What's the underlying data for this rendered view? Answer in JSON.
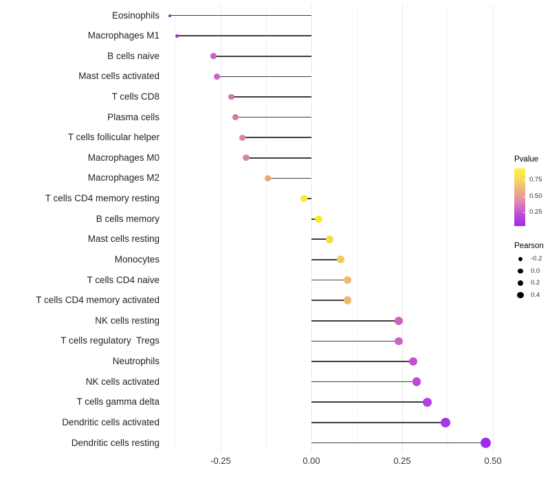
{
  "chart_data": {
    "type": "lollipop",
    "orientation": "horizontal",
    "title": "",
    "xlabel": "",
    "ylabel": "",
    "x_ticks": [
      "-0.25",
      "0.00",
      "0.25",
      "0.50"
    ],
    "x_tick_values": [
      -0.25,
      0.0,
      0.25,
      0.5
    ],
    "xlim": [
      -0.435,
      0.525
    ],
    "grid": true,
    "baseline": 0.0,
    "points": [
      {
        "label": "Eosinophils",
        "pearson": -0.39,
        "pvalue": 0.07,
        "color": "#8b28c8"
      },
      {
        "label": "Macrophages M1",
        "pearson": -0.37,
        "pvalue": 0.1,
        "color": "#9b32cc"
      },
      {
        "label": "B cells naive",
        "pearson": -0.27,
        "pvalue": 0.24,
        "color": "#c661c9"
      },
      {
        "label": "Mast cells activated",
        "pearson": -0.26,
        "pvalue": 0.26,
        "color": "#c868c2"
      },
      {
        "label": "T cells CD8",
        "pearson": -0.22,
        "pvalue": 0.34,
        "color": "#cf76ab"
      },
      {
        "label": "Plasma cells",
        "pearson": -0.21,
        "pvalue": 0.35,
        "color": "#d078a9"
      },
      {
        "label": "T cells follicular helper",
        "pearson": -0.19,
        "pvalue": 0.43,
        "color": "#d98497"
      },
      {
        "label": "Macrophages M0",
        "pearson": -0.18,
        "pvalue": 0.43,
        "color": "#d98595"
      },
      {
        "label": "Macrophages M2",
        "pearson": -0.12,
        "pvalue": 0.6,
        "color": "#ebaa6c"
      },
      {
        "label": "T cells CD4 memory resting",
        "pearson": -0.02,
        "pvalue": 0.9,
        "color": "#f6ec27"
      },
      {
        "label": "B cells memory",
        "pearson": 0.02,
        "pvalue": 0.91,
        "color": "#f8ec1f"
      },
      {
        "label": "Mast cells resting",
        "pearson": 0.05,
        "pvalue": 0.82,
        "color": "#f2dd4e"
      },
      {
        "label": "Monocytes",
        "pearson": 0.08,
        "pvalue": 0.74,
        "color": "#f0cb60"
      },
      {
        "label": "T cells CD4 naive",
        "pearson": 0.1,
        "pvalue": 0.66,
        "color": "#edba70"
      },
      {
        "label": "T cells CD4 memory activated",
        "pearson": 0.1,
        "pvalue": 0.66,
        "color": "#edb96f"
      },
      {
        "label": "NK cells resting",
        "pearson": 0.24,
        "pvalue": 0.27,
        "color": "#cd62c1"
      },
      {
        "label": "T cells regulatory  Tregs",
        "pearson": 0.24,
        "pvalue": 0.27,
        "color": "#cd62c1"
      },
      {
        "label": "Neutrophils",
        "pearson": 0.28,
        "pvalue": 0.22,
        "color": "#c351cf"
      },
      {
        "label": "NK cells activated",
        "pearson": 0.29,
        "pvalue": 0.18,
        "color": "#bd4ad7"
      },
      {
        "label": "T cells gamma delta",
        "pearson": 0.32,
        "pvalue": 0.14,
        "color": "#b440df"
      },
      {
        "label": "Dendritic cells activated",
        "pearson": 0.37,
        "pvalue": 0.09,
        "color": "#aa35e9"
      },
      {
        "label": "Dendritic cells resting",
        "pearson": 0.48,
        "pvalue": 0.04,
        "color": "#9c2bef"
      }
    ],
    "legend": {
      "position": "right",
      "pvalue": {
        "title": "Pvalue",
        "tick_labels": [
          "0.75",
          "0.50",
          "0.25"
        ],
        "gradient_top_color": "#faf43e",
        "gradient_bottom_color": "#9b2bee"
      },
      "pearson": {
        "title": "Pearson",
        "size_labels": [
          "-0.2",
          "0.0",
          "0.2",
          "0.4"
        ],
        "dot_color": "#000000"
      }
    },
    "stem_color": "#3b3b3b",
    "background_color": "#ffffff"
  }
}
